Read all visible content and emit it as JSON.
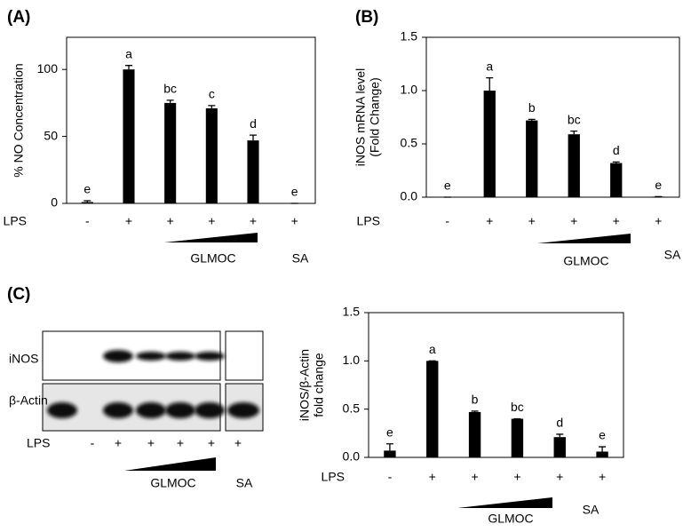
{
  "chart_data": [
    {
      "type": "bar",
      "panel_label": "(A)",
      "y_label": [
        "% NO Concentration"
      ],
      "category_label": "LPS",
      "categories": [
        "-",
        "+",
        "+",
        "+",
        "+",
        "+"
      ],
      "values": [
        1,
        100,
        75,
        71,
        47,
        0
      ],
      "errors": [
        1,
        3,
        2,
        2,
        4,
        0
      ],
      "annotations": [
        "e",
        "a",
        "bc",
        "c",
        "d",
        "e"
      ],
      "color": "#000000",
      "ylim": [
        0,
        124
      ],
      "yticks": [
        0,
        50,
        100
      ],
      "gradient_label": "GLMOC",
      "control_label": "SA"
    },
    {
      "type": "bar",
      "panel_label": "(B)",
      "y_label": [
        "iNOS mRNA level",
        "(Fold Change)"
      ],
      "category_label": "LPS",
      "categories": [
        "-",
        "+",
        "+",
        "+",
        "+",
        "+"
      ],
      "values": [
        0,
        1.0,
        0.72,
        0.59,
        0.32,
        0.005
      ],
      "errors": [
        0,
        0.12,
        0.01,
        0.03,
        0.01,
        0
      ],
      "annotations": [
        "e",
        "a",
        "b",
        "bc",
        "d",
        "e"
      ],
      "color": "#000000",
      "ylim": [
        0,
        1.5
      ],
      "yticks": [
        {
          "value": 0,
          "label": "0.0"
        },
        0.5,
        {
          "value": 1,
          "label": "1.0"
        },
        1.5
      ],
      "gradient_label": "GLMOC",
      "control_label": "SA"
    },
    {
      "type": "bar",
      "panel_label": "(C)",
      "y_label": [
        "iNOS/β-Actin",
        "fold change"
      ],
      "category_label": "LPS",
      "categories": [
        "-",
        "+",
        "+",
        "+",
        "+",
        "+"
      ],
      "values": [
        0.07,
        1.0,
        0.47,
        0.4,
        0.21,
        0.06
      ],
      "errors": [
        0.07,
        0,
        0.01,
        0,
        0.03,
        0.05
      ],
      "annotations": [
        "e",
        "a",
        "b",
        "bc",
        "d",
        "e"
      ],
      "color": "#000000",
      "ylim": [
        0,
        1.5
      ],
      "yticks": [
        {
          "value": 0,
          "label": "0.0"
        },
        0.5,
        {
          "value": 1,
          "label": "1.0"
        },
        1.5
      ],
      "gradient_label": "GLMOC",
      "control_label": "SA"
    }
  ],
  "blot": {
    "rows": [
      "iNOS",
      "β-Actin"
    ],
    "lane_label": "LPS",
    "lanes": [
      "-",
      "+",
      "+",
      "+",
      "+",
      "+"
    ],
    "gradient_label": "GLMOC",
    "control_label": "SA"
  }
}
